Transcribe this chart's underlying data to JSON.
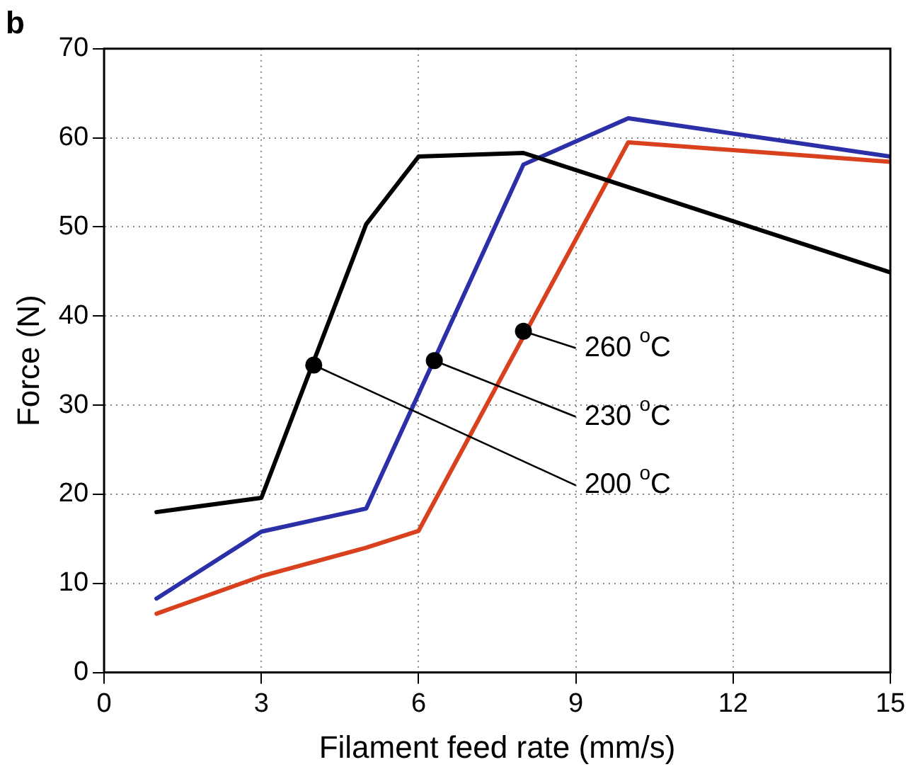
{
  "chart_data": {
    "type": "line",
    "title": "b",
    "xlabel": "Filament feed rate (mm/s)",
    "ylabel": "Force (N)",
    "xlim": [
      0,
      15
    ],
    "xticks": [
      0,
      3,
      6,
      9,
      12,
      15
    ],
    "ylim": [
      0,
      70
    ],
    "yticks": [
      0,
      10,
      20,
      30,
      40,
      50,
      60,
      70
    ],
    "grid": true,
    "legend": false,
    "marker": "none",
    "line_style": "solid",
    "series": [
      {
        "color": "#000000",
        "x": [
          1,
          3,
          5,
          6,
          8,
          15
        ],
        "values": [
          18,
          19.6,
          50.3,
          57.9,
          58.3,
          44.9
        ]
      },
      {
        "color": "#2b2fa8",
        "x": [
          1,
          3,
          5,
          8,
          10,
          15
        ],
        "values": [
          8.3,
          15.8,
          18.4,
          57,
          62.2,
          57.9
        ]
      },
      {
        "color": "#d9411e",
        "x": [
          1,
          3,
          5,
          6,
          10,
          15
        ],
        "values": [
          6.6,
          10.8,
          14,
          15.9,
          59.5,
          57.3
        ]
      }
    ],
    "annotations": [
      {
        "text": "260 $^{o}$C",
        "x": 8,
        "y": 38.3
      },
      {
        "text": "230 $^{o}$C",
        "x": 6.3,
        "y": 35
      },
      {
        "text": "200 $^{o}$C",
        "x": 4,
        "y": 34.5
      }
    ]
  }
}
